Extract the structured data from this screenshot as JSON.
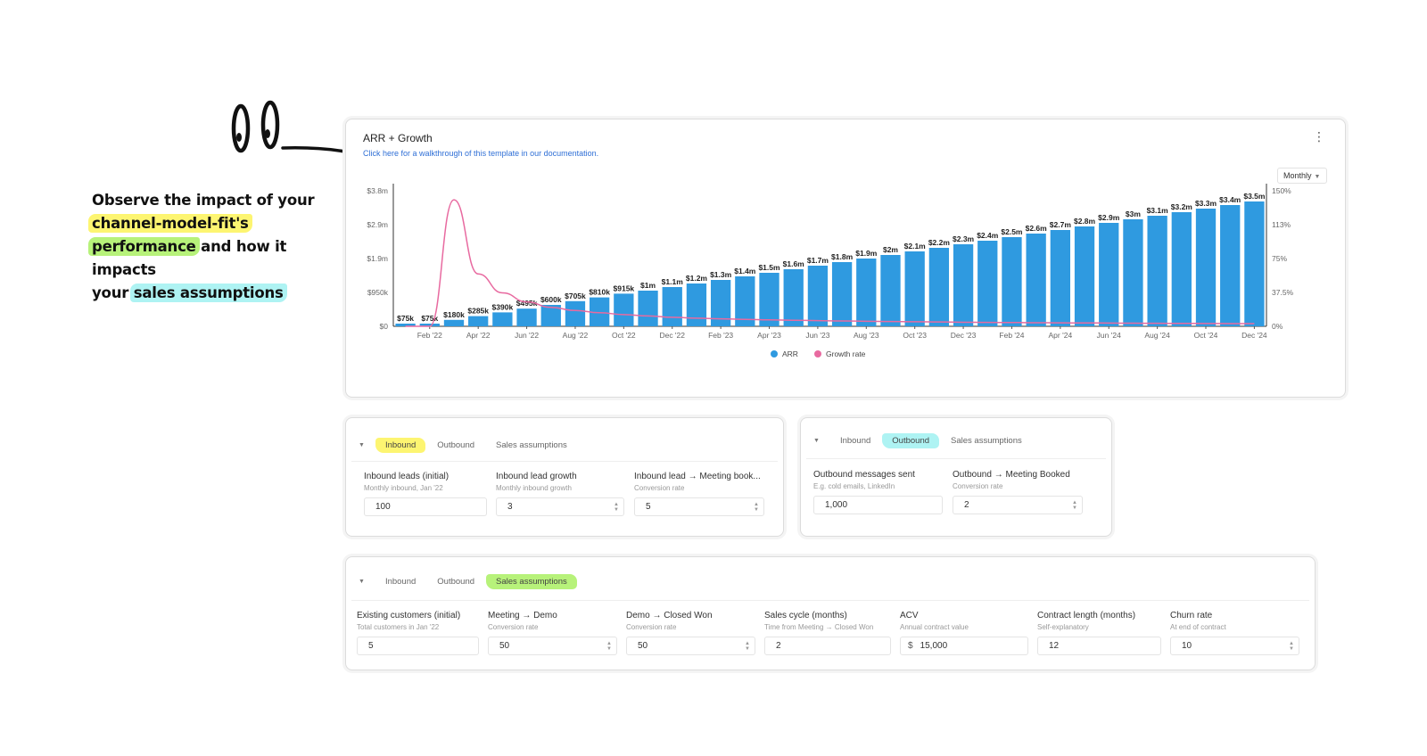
{
  "annotation": {
    "line1": "Observe the impact of your",
    "hl1": "channel-model-fit's",
    "hl2": "performance",
    "line3_rest": " and how it impacts",
    "line4_pre": "your ",
    "hl3": "sales assumptions"
  },
  "chart_card": {
    "title": "ARR + Growth",
    "link": "Click here for a walkthrough of this template in our documentation.",
    "period": "Monthly"
  },
  "chart_data": {
    "type": "bar",
    "categories": [
      "Jan '22",
      "Feb '22",
      "Mar '22",
      "Apr '22",
      "May '22",
      "Jun '22",
      "Jul '22",
      "Aug '22",
      "Sep '22",
      "Oct '22",
      "Nov '22",
      "Dec '22",
      "Jan '23",
      "Feb '23",
      "Mar '23",
      "Apr '23",
      "May '23",
      "Jun '23",
      "Jul '23",
      "Aug '23",
      "Sep '23",
      "Oct '23",
      "Nov '23",
      "Dec '23",
      "Jan '24",
      "Feb '24",
      "Mar '24",
      "Apr '24",
      "May '24",
      "Jun '24",
      "Jul '24",
      "Aug '24",
      "Sep '24",
      "Oct '24",
      "Nov '24",
      "Dec '24"
    ],
    "x_tick_labels": [
      "Feb '22",
      "Apr '22",
      "Jun '22",
      "Aug '22",
      "Oct '22",
      "Dec '22",
      "Feb '23",
      "Apr '23",
      "Jun '23",
      "Aug '23",
      "Oct '23",
      "Dec '23",
      "Feb '24",
      "Apr '24",
      "Jun '24",
      "Aug '24",
      "Oct '24",
      "Dec '24"
    ],
    "series": [
      {
        "name": "ARR",
        "type": "bar",
        "color": "#2f9ae0",
        "values": [
          75,
          75,
          180,
          285,
          390,
          495,
          600,
          705,
          810,
          915,
          1000,
          1100,
          1200,
          1300,
          1400,
          1500,
          1600,
          1700,
          1800,
          1900,
          2000,
          2100,
          2200,
          2300,
          2400,
          2500,
          2600,
          2700,
          2800,
          2900,
          3000,
          3100,
          3200,
          3300,
          3400,
          3500
        ],
        "labels": [
          "$75k",
          "$75k",
          "$180k",
          "$285k",
          "$390k",
          "$495k",
          "$600k",
          "$705k",
          "$810k",
          "$915k",
          "$1m",
          "$1.1m",
          "$1.2m",
          "$1.3m",
          "$1.4m",
          "$1.5m",
          "$1.6m",
          "$1.7m",
          "$1.8m",
          "$1.9m",
          "$2m",
          "$2.1m",
          "$2.2m",
          "$2.3m",
          "$2.4m",
          "$2.5m",
          "$2.6m",
          "$2.7m",
          "$2.8m",
          "$2.9m",
          "$3m",
          "$3.1m",
          "$3.2m",
          "$3.3m",
          "$3.4m",
          "$3.5m"
        ]
      },
      {
        "name": "Growth rate",
        "type": "line",
        "color": "#e86aa0",
        "values": [
          0,
          0,
          140,
          58,
          37,
          27,
          21,
          17.5,
          15,
          13,
          11.5,
          10,
          9,
          8.3,
          7.7,
          7.1,
          6.7,
          6.3,
          5.9,
          5.6,
          5.3,
          5,
          4.8,
          4.5,
          4.3,
          4.2,
          4,
          3.8,
          3.7,
          3.6,
          3.4,
          3.3,
          3.2,
          3.1,
          3,
          2.9
        ]
      }
    ],
    "y_left": {
      "ticks": [
        "$0",
        "$950k",
        "$1.9m",
        "$2.9m",
        "$3.8m"
      ],
      "max": 3800
    },
    "y_right": {
      "ticks": [
        "0%",
        "37.5%",
        "75%",
        "113%",
        "150%"
      ],
      "max": 150
    },
    "legend": [
      "ARR",
      "Growth rate"
    ],
    "legend_position": "bottom",
    "grid": false
  },
  "inbound_card": {
    "tabs": [
      "Inbound",
      "Outbound",
      "Sales assumptions"
    ],
    "fields": [
      {
        "label": "Inbound leads (initial)",
        "hint": "Monthly inbound, Jan '22",
        "value": "100"
      },
      {
        "label": "Inbound lead growth",
        "hint": "Monthly inbound growth",
        "value": "3"
      },
      {
        "label": "Inbound lead → Meeting book...",
        "hint": "Conversion rate",
        "value": "5"
      }
    ]
  },
  "outbound_card": {
    "tabs": [
      "Inbound",
      "Outbound",
      "Sales assumptions"
    ],
    "fields": [
      {
        "label": "Outbound messages sent",
        "hint": "E.g. cold emails, LinkedIn",
        "value": "1,000"
      },
      {
        "label": "Outbound → Meeting Booked",
        "hint": "Conversion rate",
        "value": "2"
      }
    ]
  },
  "sales_card": {
    "tabs": [
      "Inbound",
      "Outbound",
      "Sales assumptions"
    ],
    "fields": [
      {
        "label": "Existing customers (initial)",
        "hint": "Total customers in Jan '22",
        "value": "5"
      },
      {
        "label": "Meeting → Demo",
        "hint": "Conversion rate",
        "value": "50"
      },
      {
        "label": "Demo → Closed Won",
        "hint": "Conversion rate",
        "value": "50"
      },
      {
        "label": "Sales cycle (months)",
        "hint": "Time from Meeting → Closed Won",
        "value": "2"
      },
      {
        "label": "ACV",
        "hint": "Annual contract value",
        "currency": "$",
        "value": "15,000"
      },
      {
        "label": "Contract length (months)",
        "hint": "Self-explanatory",
        "value": "12"
      },
      {
        "label": "Churn rate",
        "hint": "At end of contract",
        "value": "10"
      }
    ]
  }
}
